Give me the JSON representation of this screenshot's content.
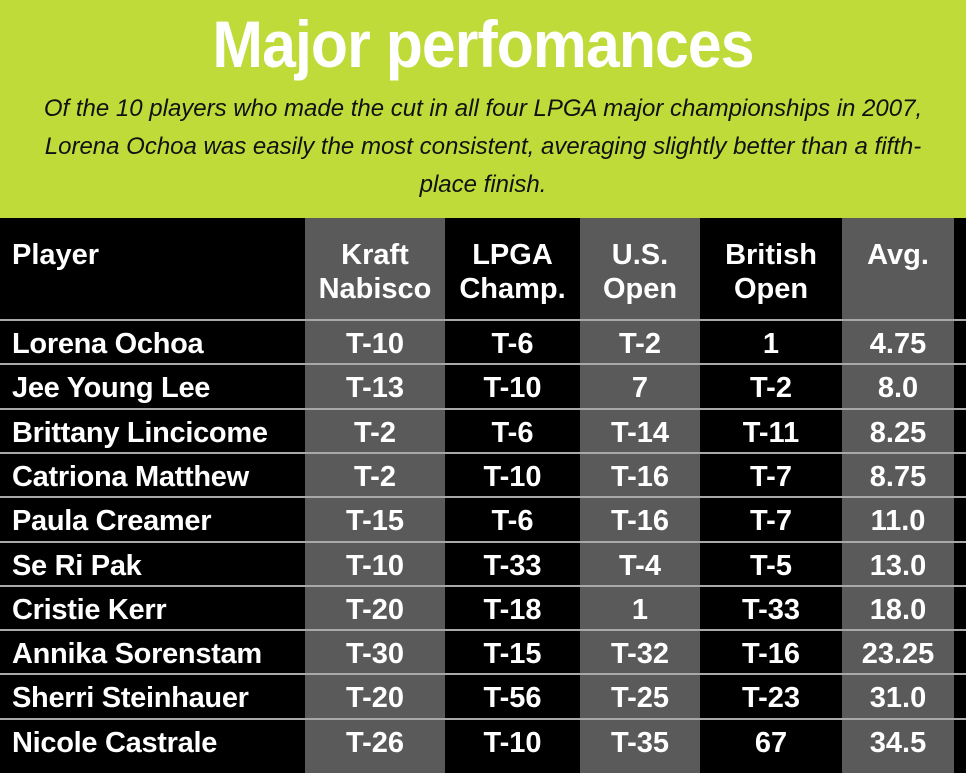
{
  "title": "Major perfomances",
  "subtitle": "Of the 10 players who made the cut in all four LPGA major championships in 2007, Lorena Ochoa was easily the most consistent, averaging slightly better than a fifth-place finish.",
  "colors": {
    "header_bg": "#bedb39",
    "title_text": "#ffffff",
    "table_bg": "#000000",
    "shaded_column_bg": "#5a5a5a",
    "row_separator": "#a8a8a8"
  },
  "chart_data": {
    "type": "table",
    "columns": [
      {
        "key": "player",
        "line1": "Player",
        "line2": ""
      },
      {
        "key": "kraft",
        "line1": "Kraft",
        "line2": "Nabisco"
      },
      {
        "key": "lpga",
        "line1": "LPGA",
        "line2": "Champ."
      },
      {
        "key": "usopen",
        "line1": "U.S.",
        "line2": "Open"
      },
      {
        "key": "british",
        "line1": "British",
        "line2": "Open"
      },
      {
        "key": "avg",
        "line1": "Avg.",
        "line2": ""
      }
    ],
    "rows": [
      {
        "player": "Lorena Ochoa",
        "kraft": "T-10",
        "lpga": "T-6",
        "usopen": "T-2",
        "british": "1",
        "avg": "4.75"
      },
      {
        "player": "Jee Young Lee",
        "kraft": "T-13",
        "lpga": "T-10",
        "usopen": "7",
        "british": "T-2",
        "avg": "8.0"
      },
      {
        "player": "Brittany Lincicome",
        "kraft": "T-2",
        "lpga": "T-6",
        "usopen": "T-14",
        "british": "T-11",
        "avg": "8.25"
      },
      {
        "player": "Catriona Matthew",
        "kraft": "T-2",
        "lpga": "T-10",
        "usopen": "T-16",
        "british": "T-7",
        "avg": "8.75"
      },
      {
        "player": "Paula Creamer",
        "kraft": "T-15",
        "lpga": "T-6",
        "usopen": "T-16",
        "british": "T-7",
        "avg": "11.0"
      },
      {
        "player": "Se Ri Pak",
        "kraft": "T-10",
        "lpga": "T-33",
        "usopen": "T-4",
        "british": "T-5",
        "avg": "13.0"
      },
      {
        "player": "Cristie Kerr",
        "kraft": "T-20",
        "lpga": "T-18",
        "usopen": "1",
        "british": "T-33",
        "avg": "18.0"
      },
      {
        "player": "Annika Sorenstam",
        "kraft": "T-30",
        "lpga": "T-15",
        "usopen": "T-32",
        "british": "T-16",
        "avg": "23.25"
      },
      {
        "player": "Sherri Steinhauer",
        "kraft": "T-20",
        "lpga": "T-56",
        "usopen": "T-25",
        "british": "T-23",
        "avg": "31.0"
      },
      {
        "player": "Nicole Castrale",
        "kraft": "T-26",
        "lpga": "T-10",
        "usopen": "T-35",
        "british": "67",
        "avg": "34.5"
      }
    ],
    "shaded_columns": [
      "kraft",
      "usopen",
      "avg"
    ]
  }
}
